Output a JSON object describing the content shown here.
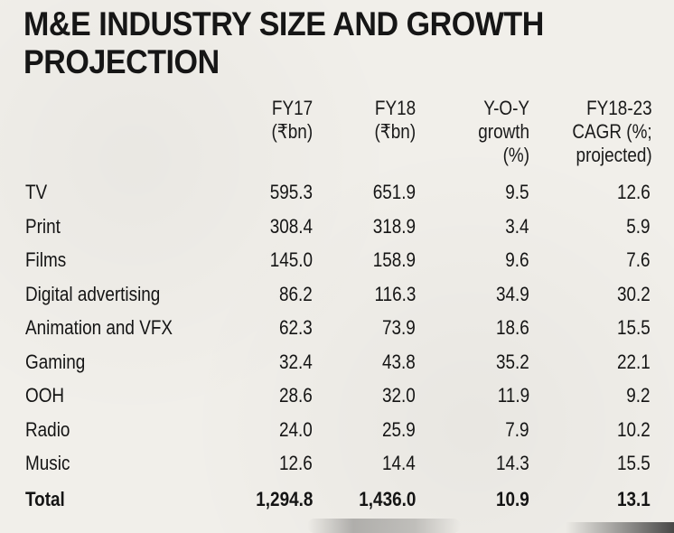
{
  "title": {
    "line1": "M&E INDUSTRY SIZE AND GROWTH",
    "line2": "PROJECTION"
  },
  "columns": [
    {
      "line1": "FY17",
      "line2": "(₹bn)",
      "line3": ""
    },
    {
      "line1": "FY18",
      "line2": "(₹bn)",
      "line3": ""
    },
    {
      "line1": "Y-O-Y",
      "line2": "growth",
      "line3": "(%)"
    },
    {
      "line1": "FY18-23",
      "line2": "CAGR (%;",
      "line3": "projected)"
    }
  ],
  "rows": [
    {
      "label": "TV",
      "fy17": "595.3",
      "fy18": "651.9",
      "yoy": "9.5",
      "cagr": "12.6"
    },
    {
      "label": "Print",
      "fy17": "308.4",
      "fy18": "318.9",
      "yoy": "3.4",
      "cagr": "5.9"
    },
    {
      "label": "Films",
      "fy17": "145.0",
      "fy18": "158.9",
      "yoy": "9.6",
      "cagr": "7.6"
    },
    {
      "label": "Digital advertising",
      "fy17": "86.2",
      "fy18": "116.3",
      "yoy": "34.9",
      "cagr": "30.2"
    },
    {
      "label": "Animation and VFX",
      "fy17": "62.3",
      "fy18": "73.9",
      "yoy": "18.6",
      "cagr": "15.5"
    },
    {
      "label": "Gaming",
      "fy17": "32.4",
      "fy18": "43.8",
      "yoy": "35.2",
      "cagr": "22.1"
    },
    {
      "label": "OOH",
      "fy17": "28.6",
      "fy18": "32.0",
      "yoy": "11.9",
      "cagr": "9.2"
    },
    {
      "label": "Radio",
      "fy17": "24.0",
      "fy18": "25.9",
      "yoy": "7.9",
      "cagr": "10.2"
    },
    {
      "label": "Music",
      "fy17": "12.6",
      "fy18": "14.4",
      "yoy": "14.3",
      "cagr": "15.5"
    }
  ],
  "total": {
    "label": "Total",
    "fy17": "1,294.8",
    "fy18": "1,436.0",
    "yoy": "10.9",
    "cagr": "13.1"
  },
  "colors": {
    "paper": "#f1efea",
    "ink": "#141414"
  }
}
